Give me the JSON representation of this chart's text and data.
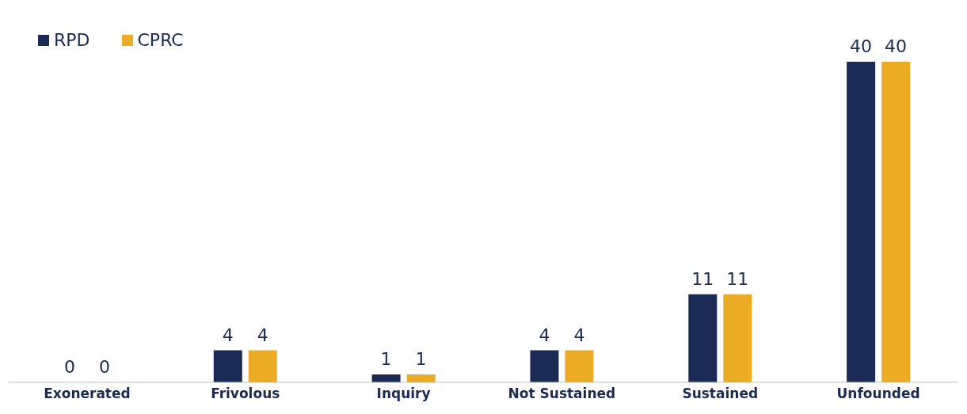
{
  "chart_data": {
    "type": "bar",
    "categories": [
      "Exonerated",
      "Frivolous",
      "Inquiry",
      "Not Sustained",
      "Sustained",
      "Unfounded"
    ],
    "series": [
      {
        "name": "RPD",
        "color": "#1b2a55",
        "values": [
          0,
          4,
          1,
          4,
          11,
          40
        ]
      },
      {
        "name": "CPRC",
        "color": "#ecab24",
        "values": [
          0,
          4,
          1,
          4,
          11,
          40
        ]
      }
    ],
    "data_labels": true,
    "legend": "top left",
    "grid": false
  }
}
